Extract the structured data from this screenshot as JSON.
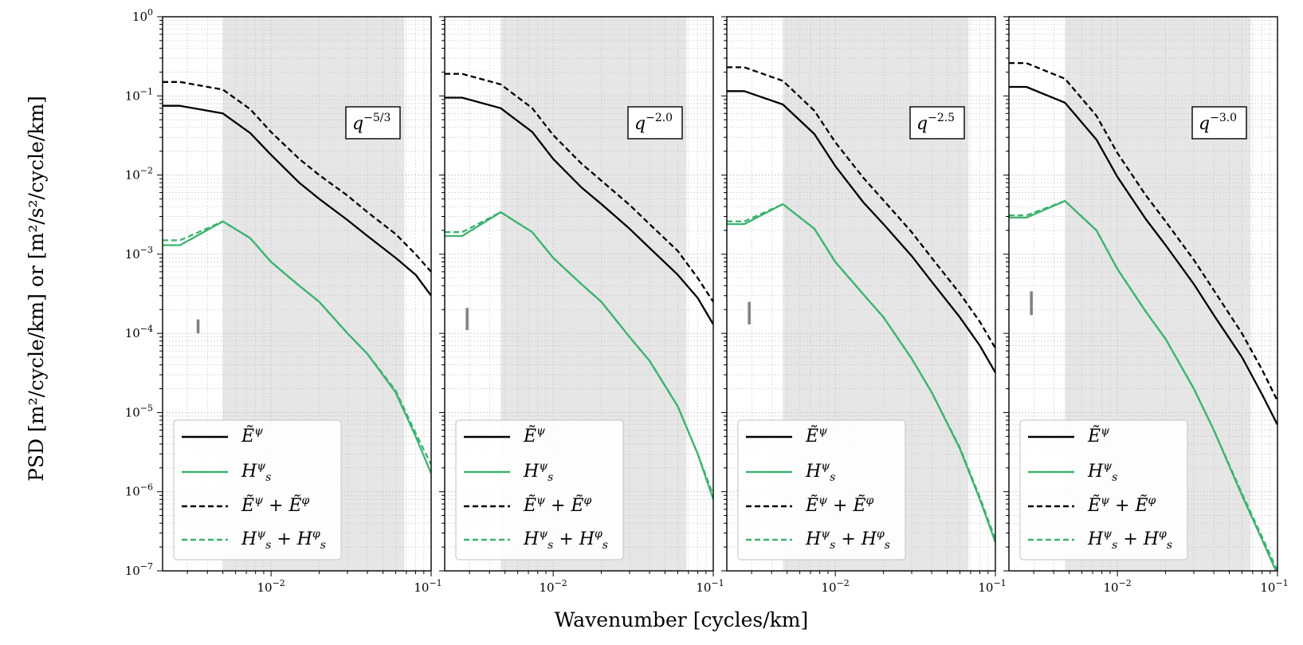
{
  "figure": {
    "xlabel": "Wavenumber [cycles/km]",
    "ylabel": "PSD [m²/cycle/km] or [m²/s²/cycle/km]"
  },
  "style": {
    "black": "#000000",
    "green": "#3cb371",
    "shade": "#e6e6e6",
    "grid": "#c8c8c8",
    "errbar": "#808080"
  },
  "chart_data": [
    {
      "type": "line",
      "annotation": "q^{-5/3}",
      "xscale": "log",
      "yscale": "log",
      "xlim": [
        0.0021,
        0.1
      ],
      "ylim": [
        1e-07,
        1
      ],
      "x_ticks": [
        "10^-2",
        "10^-1"
      ],
      "y_ticks": [
        "10^0",
        "10^-1",
        "10^-2",
        "10^-3",
        "10^-4",
        "10^-5",
        "10^-6",
        "10^-7"
      ],
      "shaded_band": [
        0.005,
        0.068
      ],
      "error_bar": {
        "x": 0.0035,
        "y_low": 0.0001,
        "y_high": 0.00015
      },
      "legend": [
        "Ẽ^ψ",
        "H_s^ψ",
        "Ẽ^ψ + Ẽ^φ",
        "H_s^ψ + H_s^φ"
      ],
      "legend_loc": "lower left",
      "x": [
        0.0021,
        0.0027,
        0.005,
        0.0074,
        0.01,
        0.015,
        0.02,
        0.03,
        0.04,
        0.06,
        0.08,
        0.1
      ],
      "series": [
        {
          "name": "Ẽ^ψ",
          "color": "black",
          "dash": false,
          "values": [
            0.075,
            0.075,
            0.06,
            0.034,
            0.018,
            0.008,
            0.005,
            0.0027,
            0.0017,
            0.0009,
            0.00055,
            0.0003
          ]
        },
        {
          "name": "H_s^ψ",
          "color": "green",
          "dash": false,
          "values": [
            0.0013,
            0.0013,
            0.0026,
            0.0016,
            0.0008,
            0.0004,
            0.00025,
            0.0001,
            5.5e-05,
            1.8e-05,
            5e-06,
            1.7e-06
          ]
        },
        {
          "name": "Ẽ^ψ + Ẽ^φ",
          "color": "black",
          "dash": true,
          "values": [
            0.15,
            0.15,
            0.12,
            0.068,
            0.035,
            0.016,
            0.01,
            0.0055,
            0.0034,
            0.0018,
            0.001,
            0.0006
          ]
        },
        {
          "name": "H_s^ψ + H_s^φ",
          "color": "green",
          "dash": true,
          "values": [
            0.0015,
            0.0015,
            0.0026,
            0.0016,
            0.0008,
            0.0004,
            0.00025,
            0.0001,
            5.5e-05,
            1.9e-05,
            5.5e-06,
            2.2e-06
          ]
        }
      ]
    },
    {
      "type": "line",
      "annotation": "q^{-2.0}",
      "xscale": "log",
      "yscale": "log",
      "xlim": [
        0.0021,
        0.1
      ],
      "ylim": [
        1e-07,
        1
      ],
      "x_ticks": [
        "10^-2",
        "10^-1"
      ],
      "y_ticks": [],
      "shaded_band": [
        0.0047,
        0.068
      ],
      "error_bar": {
        "x": 0.0029,
        "y_low": 0.00011,
        "y_high": 0.00021
      },
      "legend": [
        "Ẽ^ψ",
        "H_s^ψ",
        "Ẽ^ψ + Ẽ^φ",
        "H_s^ψ + H_s^φ"
      ],
      "legend_loc": "lower left",
      "x": [
        0.0021,
        0.0027,
        0.0047,
        0.0074,
        0.01,
        0.015,
        0.02,
        0.03,
        0.04,
        0.06,
        0.08,
        0.1
      ],
      "series": [
        {
          "name": "Ẽ^ψ",
          "color": "black",
          "dash": false,
          "values": [
            0.095,
            0.095,
            0.07,
            0.035,
            0.016,
            0.007,
            0.0043,
            0.0021,
            0.0012,
            0.00055,
            0.00028,
            0.00013
          ]
        },
        {
          "name": "H_s^ψ",
          "color": "green",
          "dash": false,
          "values": [
            0.0017,
            0.0017,
            0.0034,
            0.0019,
            0.0009,
            0.00042,
            0.00025,
            9e-05,
            4.5e-05,
            1.2e-05,
            3e-06,
            8e-07
          ]
        },
        {
          "name": "Ẽ^ψ + Ẽ^φ",
          "color": "black",
          "dash": true,
          "values": [
            0.19,
            0.19,
            0.14,
            0.07,
            0.032,
            0.014,
            0.0085,
            0.0042,
            0.0024,
            0.0011,
            0.0005,
            0.00025
          ]
        },
        {
          "name": "H_s^ψ + H_s^φ",
          "color": "green",
          "dash": true,
          "values": [
            0.0019,
            0.0019,
            0.0034,
            0.0019,
            0.0009,
            0.00042,
            0.00025,
            9e-05,
            4.5e-05,
            1.2e-05,
            3e-06,
            9e-07
          ]
        }
      ]
    },
    {
      "type": "line",
      "annotation": "q^{-2.5}",
      "xscale": "log",
      "yscale": "log",
      "xlim": [
        0.0021,
        0.1
      ],
      "ylim": [
        1e-07,
        1
      ],
      "x_ticks": [
        "10^-2",
        "10^-1"
      ],
      "y_ticks": [],
      "shaded_band": [
        0.0047,
        0.068
      ],
      "error_bar": {
        "x": 0.0029,
        "y_low": 0.00013,
        "y_high": 0.00025
      },
      "legend": [
        "Ẽ^ψ",
        "H_s^ψ",
        "Ẽ^ψ + Ẽ^φ",
        "H_s^ψ + H_s^φ"
      ],
      "legend_loc": "lower left",
      "x": [
        0.0021,
        0.0027,
        0.0047,
        0.0074,
        0.01,
        0.015,
        0.02,
        0.03,
        0.04,
        0.06,
        0.08,
        0.1
      ],
      "series": [
        {
          "name": "Ẽ^ψ",
          "color": "black",
          "dash": false,
          "values": [
            0.115,
            0.115,
            0.078,
            0.033,
            0.013,
            0.0045,
            0.0024,
            0.00095,
            0.00045,
            0.00016,
            7e-05,
            3.2e-05
          ]
        },
        {
          "name": "H_s^ψ",
          "color": "green",
          "dash": false,
          "values": [
            0.0024,
            0.0024,
            0.0043,
            0.0021,
            0.0008,
            0.00031,
            0.00016,
            4.8e-05,
            1.8e-05,
            3.5e-06,
            8e-07,
            2.3e-07
          ]
        },
        {
          "name": "Ẽ^ψ + Ẽ^φ",
          "color": "black",
          "dash": true,
          "values": [
            0.23,
            0.23,
            0.155,
            0.065,
            0.026,
            0.0092,
            0.0048,
            0.0019,
            0.0009,
            0.00032,
            0.00014,
            6.5e-05
          ]
        },
        {
          "name": "H_s^ψ + H_s^φ",
          "color": "green",
          "dash": true,
          "values": [
            0.0026,
            0.0026,
            0.0043,
            0.0021,
            0.0008,
            0.00031,
            0.00016,
            4.8e-05,
            1.8e-05,
            3.6e-06,
            8.5e-07,
            2.5e-07
          ]
        }
      ]
    },
    {
      "type": "line",
      "annotation": "q^{-3.0}",
      "xscale": "log",
      "yscale": "log",
      "xlim": [
        0.0021,
        0.1
      ],
      "ylim": [
        1e-07,
        1
      ],
      "x_ticks": [
        "10^-2",
        "10^-1"
      ],
      "y_ticks": [],
      "shaded_band": [
        0.0047,
        0.068
      ],
      "error_bar": {
        "x": 0.0029,
        "y_low": 0.00017,
        "y_high": 0.00034
      },
      "legend": [
        "Ẽ^ψ",
        "H_s^ψ",
        "Ẽ^ψ + Ẽ^φ",
        "H_s^ψ + H_s^φ"
      ],
      "legend_loc": "lower left",
      "x": [
        0.0021,
        0.0027,
        0.0047,
        0.0074,
        0.01,
        0.015,
        0.02,
        0.03,
        0.04,
        0.06,
        0.08,
        0.1
      ],
      "series": [
        {
          "name": "Ẽ^ψ",
          "color": "black",
          "dash": false,
          "values": [
            0.13,
            0.13,
            0.082,
            0.028,
            0.0095,
            0.0028,
            0.0013,
            0.00042,
            0.00017,
            5e-05,
            1.7e-05,
            7e-06
          ]
        },
        {
          "name": "H_s^ψ",
          "color": "green",
          "dash": false,
          "values": [
            0.0029,
            0.0029,
            0.0047,
            0.002,
            0.00065,
            0.00019,
            8.5e-05,
            2e-05,
            6e-06,
            9e-07,
            2.5e-07,
            9e-08
          ]
        },
        {
          "name": "Ẽ^ψ + Ẽ^φ",
          "color": "black",
          "dash": true,
          "values": [
            0.26,
            0.26,
            0.165,
            0.056,
            0.019,
            0.0056,
            0.0026,
            0.00085,
            0.00035,
            0.0001,
            3.5e-05,
            1.4e-05
          ]
        },
        {
          "name": "H_s^ψ + H_s^φ",
          "color": "green",
          "dash": true,
          "values": [
            0.0031,
            0.0031,
            0.0047,
            0.002,
            0.00065,
            0.00019,
            8.5e-05,
            2e-05,
            6e-06,
            9.5e-07,
            2.7e-07,
            1e-07
          ]
        }
      ]
    }
  ]
}
